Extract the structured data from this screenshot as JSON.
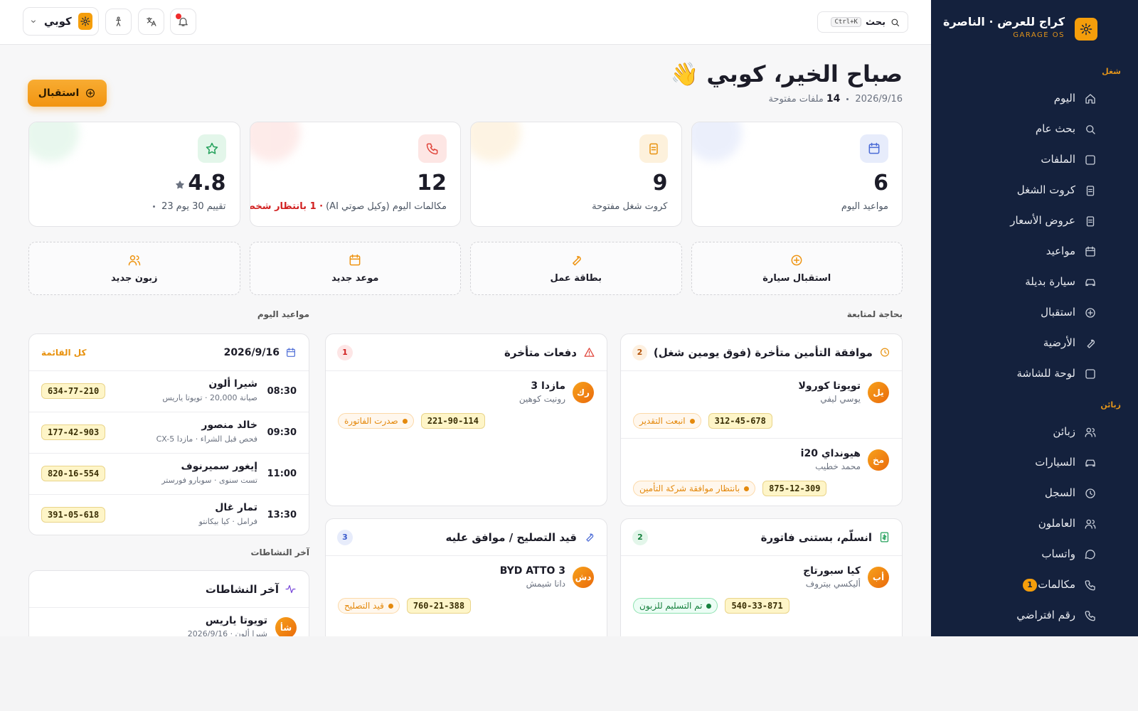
{
  "sidebar": {
    "brand": "كراج للعرض · الناصرة",
    "brand_sub": "GARAGE OS",
    "sections": [
      {
        "title": "شغل",
        "items": [
          {
            "label": "اليوم"
          },
          {
            "label": "بحث عام"
          },
          {
            "label": "الملفات"
          },
          {
            "label": "كروت الشغل"
          },
          {
            "label": "عروض الأسعار"
          },
          {
            "label": "مواعيد"
          },
          {
            "label": "سيارة بديلة"
          },
          {
            "label": "استقبال"
          },
          {
            "label": "الأرضية"
          },
          {
            "label": "لوحة للشاشة"
          }
        ]
      },
      {
        "title": "زبائن",
        "items": [
          {
            "label": "زبائن"
          },
          {
            "label": "السيارات"
          },
          {
            "label": "السجل"
          },
          {
            "label": "العاملون"
          },
          {
            "label": "واتساب"
          },
          {
            "label": "مكالمات",
            "badge": 1
          },
          {
            "label": "رقم افتراضي"
          }
        ]
      }
    ]
  },
  "topbar": {
    "search": "بحث",
    "shortcut": "Ctrl+K",
    "user": "كوبي"
  },
  "header": {
    "greeting": "صباح الخير، كوبي 👋",
    "date": "2026/9/16",
    "open_count": 14,
    "open_label": "ملفات مفتوحة",
    "action": "استقبال"
  },
  "stats": [
    {
      "value": 6,
      "label": "مواعيد اليوم"
    },
    {
      "value": 9,
      "label": "كروت شغل مفتوحة"
    },
    {
      "value": 12,
      "label": "مكالمات اليوم (وكيل صوتي AI)",
      "note": "· 1 بانتظار شخص"
    },
    {
      "value": 4.8,
      "label": "تقييم 30 يوم",
      "count": 23
    }
  ],
  "quick_actions": [
    "استقبال سيارة",
    "بطاقة عمل",
    "موعد جديد",
    "زبون جديد"
  ],
  "follow_up": {
    "title": "بحاجة لمتابعة",
    "panels": [
      {
        "title": "موافقة التأمين متأخرة (فوق يومين شغل)",
        "count": 2,
        "items": [
          {
            "initials": "يل",
            "car": "تويوتا كورولا",
            "customer": "يوسي ليفي",
            "plate": "312-45-678",
            "status": "انبعت التقدير"
          },
          {
            "initials": "مخ",
            "car": "هيونداي i20",
            "customer": "محمد خطيب",
            "plate": "875-12-309",
            "status": "بانتظار موافقة شركة التأمين"
          }
        ]
      },
      {
        "title": "دفعات متأخرة",
        "count": 1,
        "items": [
          {
            "initials": "رك",
            "car": "مازدا 3",
            "customer": "رونيت كوهين",
            "plate": "221-90-114",
            "status": "صدرت الفاتورة"
          }
        ]
      },
      {
        "title": "انسلّم، بستنى فاتورة",
        "count": 2,
        "items": [
          {
            "initials": "أب",
            "car": "كيا سبورتاج",
            "customer": "أليكسي بيتروف",
            "plate": "540-33-871",
            "status": "تم التسليم للزبون"
          }
        ]
      },
      {
        "title": "قيد التصليح / موافق عليه",
        "count": 3,
        "items": [
          {
            "initials": "دش",
            "car": "BYD ATTO 3",
            "customer": "دانا شيمش",
            "plate": "760-21-388",
            "status": "قيد التصليح"
          }
        ]
      }
    ]
  },
  "appointments": {
    "section": "مواعيد اليوم",
    "date": "2026/9/16",
    "link": "كل القائمة",
    "rows": [
      {
        "time": "08:30",
        "name": "شيرا ألون",
        "detail": "صيانة 20,000 · تويوتا ياريس",
        "plate": "634-77-210"
      },
      {
        "time": "09:30",
        "name": "خالد منصور",
        "detail": "فحص قبل الشراء · مازدا CX-5",
        "plate": "177-42-903"
      },
      {
        "time": "11:00",
        "name": "إيغور سميرنوف",
        "detail": "تست سنوى · سوبارو فورستر",
        "plate": "820-16-554"
      },
      {
        "time": "13:30",
        "name": "تمار غال",
        "detail": "فرامل · كيا بيكانتو",
        "plate": "391-05-618"
      }
    ]
  },
  "activity": {
    "section": "آخر النشاطات",
    "title": "آخر النشاطات",
    "items": [
      {
        "initials": "شأ",
        "title": "تويوتا ياريس",
        "meta": "شيرا ألون · 2026/9/16"
      }
    ]
  }
}
